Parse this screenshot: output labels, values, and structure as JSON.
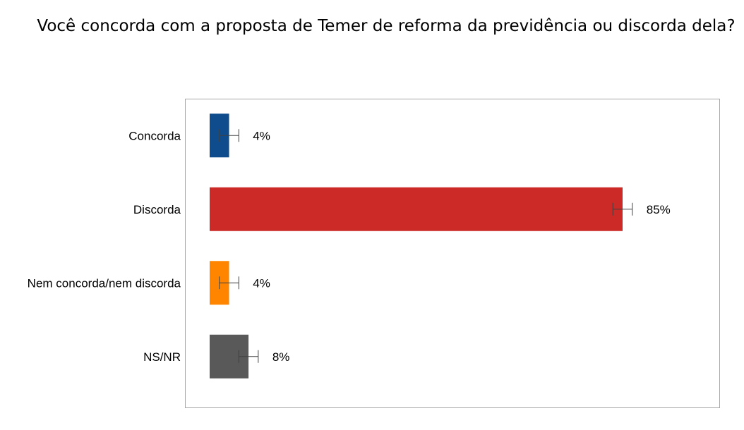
{
  "chart_data": {
    "type": "bar",
    "orientation": "horizontal",
    "title": "Você concorda com a proposta de Temer de reforma da previdência ou discorda dela?",
    "categories": [
      "Concorda",
      "Discorda",
      "Nem concorda/nem discorda",
      "NS/NR"
    ],
    "values": [
      4,
      85,
      4,
      8
    ],
    "value_labels": [
      "4%",
      "85%",
      "4%",
      "8%"
    ],
    "error_margin": 2,
    "colors": [
      "#0E4C8E",
      "#CB2A26",
      "#FF8500",
      "#595959"
    ],
    "xlim": [
      0,
      100
    ],
    "grid": false,
    "legend": "none"
  }
}
